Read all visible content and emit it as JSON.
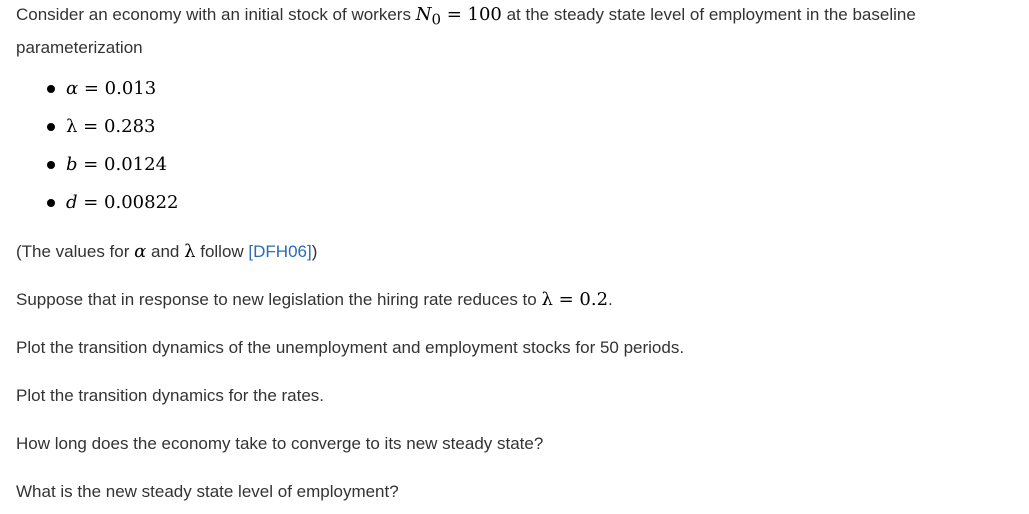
{
  "intro": {
    "text_before": "Consider an economy with an initial stock of workers ",
    "n0_symbol": "N",
    "n0_subscript": "0",
    "n0_value": " = 100",
    "text_after_line1": " at the steady state level of employment in the baseline",
    "text_line2": "parameterization"
  },
  "parameters": [
    {
      "symbol": "α",
      "value": " = 0.013"
    },
    {
      "symbol": "λ",
      "value": " = 0.283"
    },
    {
      "symbol": "b",
      "value": " = 0.0124"
    },
    {
      "symbol": "d",
      "value": " = 0.00822"
    }
  ],
  "source_note": {
    "open": "(The values for ",
    "alpha": "α",
    "and": " and ",
    "lambda": "λ",
    "follow": " follow ",
    "citation": "[DFH06]",
    "close": ")"
  },
  "legislation": {
    "text": "Suppose that in response to new legislation the hiring rate reduces to ",
    "symbol": "λ",
    "value": " = 0.2",
    "period": "."
  },
  "task_stocks": "Plot the transition dynamics of the unemployment and employment stocks for 50 periods.",
  "task_rates": "Plot the transition dynamics for the rates.",
  "question_converge": "How long does the economy take to converge to its new steady state?",
  "question_level": "What is the new steady state level of employment?"
}
